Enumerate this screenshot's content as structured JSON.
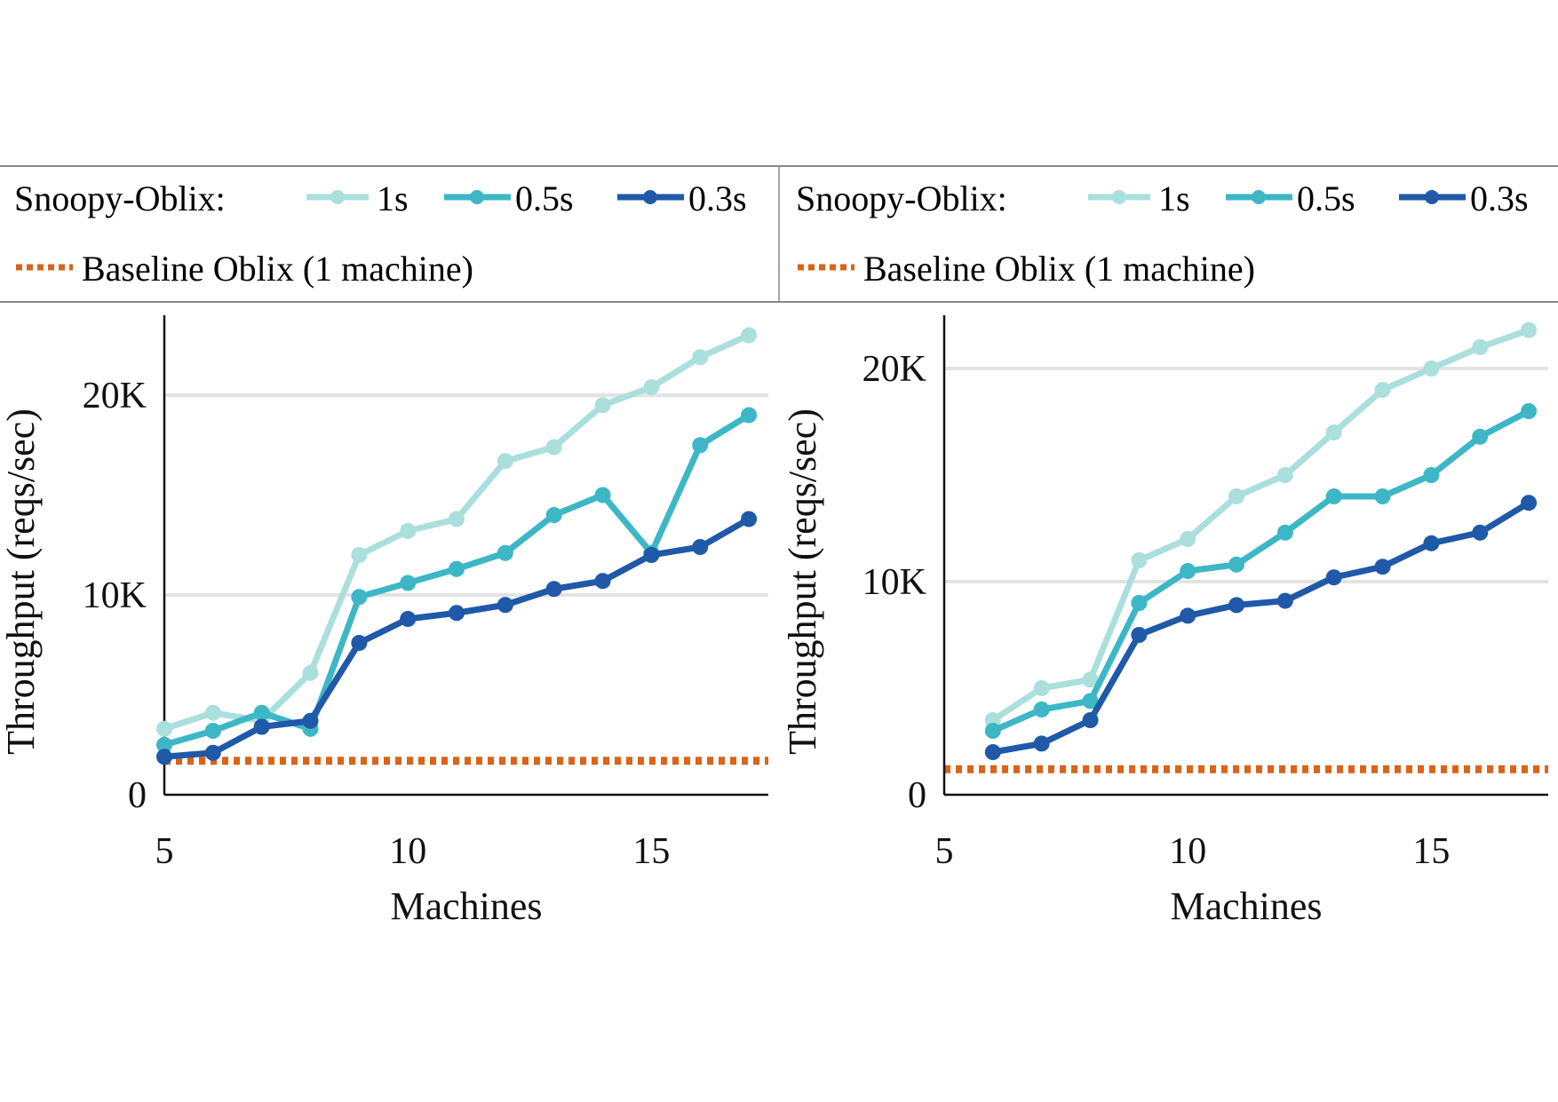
{
  "legend": {
    "prefix": "Snoopy-Oblix:",
    "entries": [
      "1s",
      "0.5s",
      "0.3s"
    ],
    "baseline_label": "Baseline Oblix (1 machine)"
  },
  "colors": {
    "s1": "#aadfdc",
    "s05": "#3db7c6",
    "s03": "#1f59a8",
    "baseline": "#d9641a",
    "grid": "#e3e3e3",
    "axis": "#111111",
    "legend_border": "#888888"
  },
  "chart_data": [
    {
      "type": "line",
      "xlabel": "Machines",
      "ylabel": "Throughput (reqs/sec)",
      "xlim": [
        5,
        17.4
      ],
      "ylim": [
        0,
        24000
      ],
      "xticks": [
        {
          "value": 5,
          "label": "5"
        },
        {
          "value": 10,
          "label": "10"
        },
        {
          "value": 15,
          "label": "15"
        }
      ],
      "yticks": [
        {
          "value": 0,
          "label": "0"
        },
        {
          "value": 10000,
          "label": "10K"
        },
        {
          "value": 20000,
          "label": "20K"
        }
      ],
      "grid": true,
      "baseline": 1700,
      "series": [
        {
          "name": "1s",
          "color_key": "s1",
          "x": [
            5,
            6,
            7,
            8,
            9,
            10,
            11,
            12,
            13,
            14,
            15,
            16,
            17
          ],
          "y": [
            3300,
            4100,
            3700,
            6100,
            12000,
            13200,
            13800,
            16700,
            17400,
            19500,
            20400,
            21900,
            23000
          ]
        },
        {
          "name": "0.5s",
          "color_key": "s05",
          "x": [
            5,
            6,
            7,
            8,
            9,
            10,
            11,
            12,
            13,
            14,
            15,
            16,
            17
          ],
          "y": [
            2500,
            3200,
            4100,
            3300,
            9900,
            10600,
            11300,
            12100,
            14000,
            15000,
            12100,
            17500,
            19000
          ]
        },
        {
          "name": "0.3s",
          "color_key": "s03",
          "x": [
            5,
            6,
            7,
            8,
            9,
            10,
            11,
            12,
            13,
            14,
            15,
            16,
            17
          ],
          "y": [
            1900,
            2100,
            3400,
            3700,
            7600,
            8800,
            9100,
            9500,
            10300,
            10700,
            12000,
            12400,
            13800
          ]
        }
      ]
    },
    {
      "type": "line",
      "xlabel": "Machines",
      "ylabel": "Throughput (reqs/sec)",
      "xlim": [
        5,
        17.4
      ],
      "ylim": [
        0,
        22500
      ],
      "xticks": [
        {
          "value": 5,
          "label": "5"
        },
        {
          "value": 10,
          "label": "10"
        },
        {
          "value": 15,
          "label": "15"
        }
      ],
      "yticks": [
        {
          "value": 0,
          "label": "0"
        },
        {
          "value": 10000,
          "label": "10K"
        },
        {
          "value": 20000,
          "label": "20K"
        }
      ],
      "grid": true,
      "baseline": 1200,
      "series": [
        {
          "name": "1s",
          "color_key": "s1",
          "x": [
            6,
            7,
            8,
            9,
            10,
            11,
            12,
            13,
            14,
            15,
            16,
            17
          ],
          "y": [
            3500,
            5000,
            5400,
            11000,
            12000,
            14000,
            15000,
            17000,
            19000,
            20000,
            21000,
            21800
          ]
        },
        {
          "name": "0.5s",
          "color_key": "s05",
          "x": [
            6,
            7,
            8,
            9,
            10,
            11,
            12,
            13,
            14,
            15,
            16,
            17
          ],
          "y": [
            3000,
            4000,
            4400,
            9000,
            10500,
            10800,
            12300,
            14000,
            14000,
            15000,
            16800,
            18000
          ]
        },
        {
          "name": "0.3s",
          "color_key": "s03",
          "x": [
            6,
            7,
            8,
            9,
            10,
            11,
            12,
            13,
            14,
            15,
            16,
            17
          ],
          "y": [
            2000,
            2400,
            3500,
            7500,
            8400,
            8900,
            9100,
            10200,
            10700,
            11800,
            12300,
            13700
          ]
        }
      ]
    }
  ]
}
